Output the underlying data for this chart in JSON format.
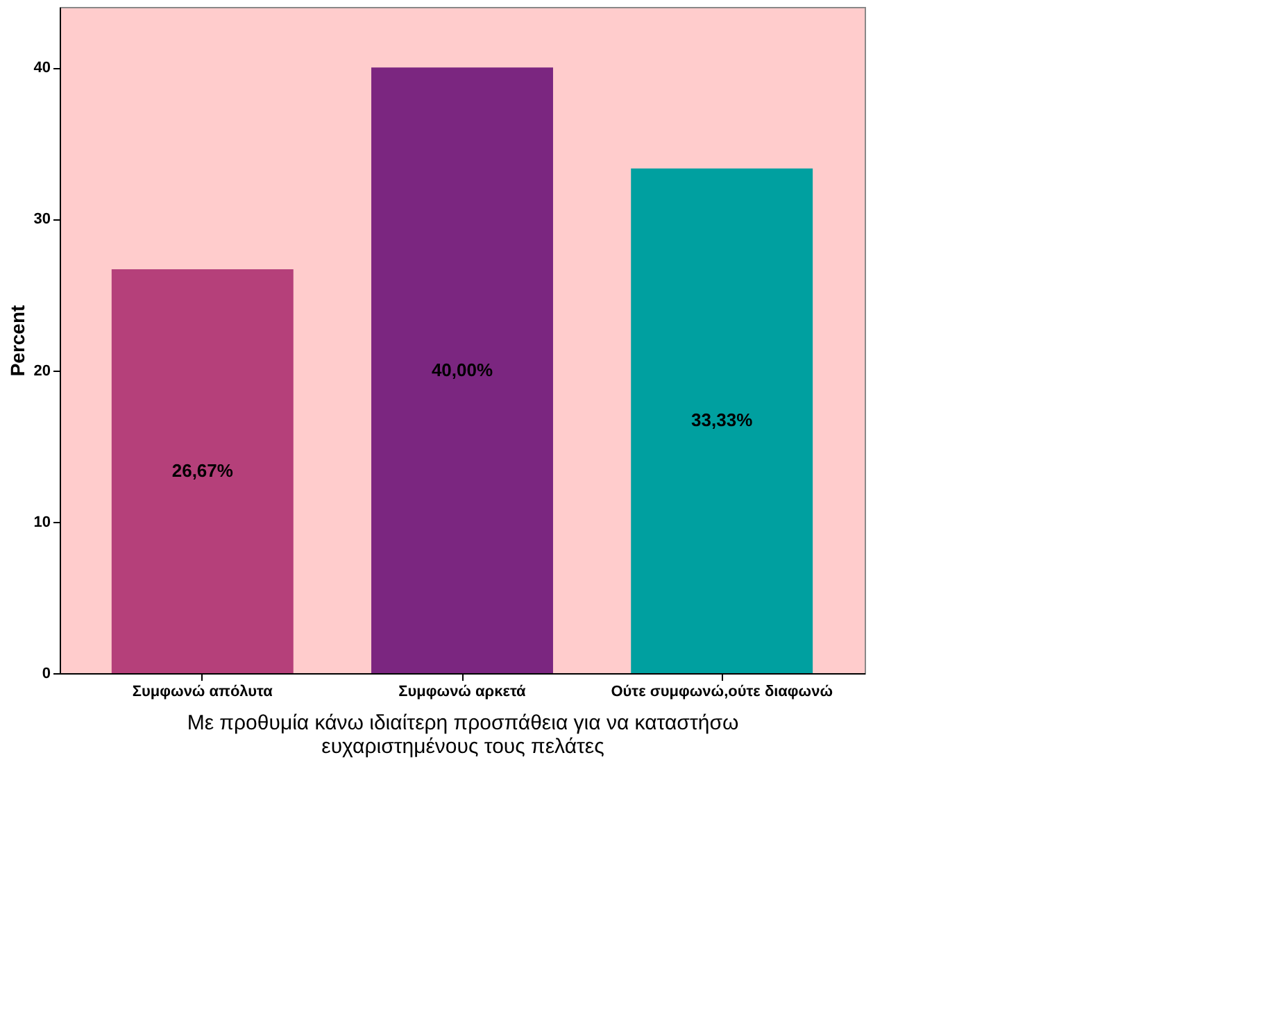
{
  "chart_data": {
    "type": "bar",
    "categories": [
      "Συμφωνώ απόλυτα",
      "Συμφωνώ αρκετά",
      "Ούτε συμφωνώ,ούτε διαφωνώ"
    ],
    "values": [
      26.67,
      40.0,
      33.33
    ],
    "value_labels": [
      "26,67%",
      "40,00%",
      "33,33%"
    ],
    "colors": [
      "#b5407a",
      "#7b2680",
      "#00a0a0"
    ],
    "xlabel": "Με προθυμία κάνω ιδιαίτερη προσπάθεια για να καταστήσω ευχαριστημένους τους πελάτες",
    "ylabel": "Percent",
    "ylim": [
      0,
      44
    ],
    "yticks": [
      0,
      10,
      20,
      30,
      40
    ],
    "grid": false
  }
}
